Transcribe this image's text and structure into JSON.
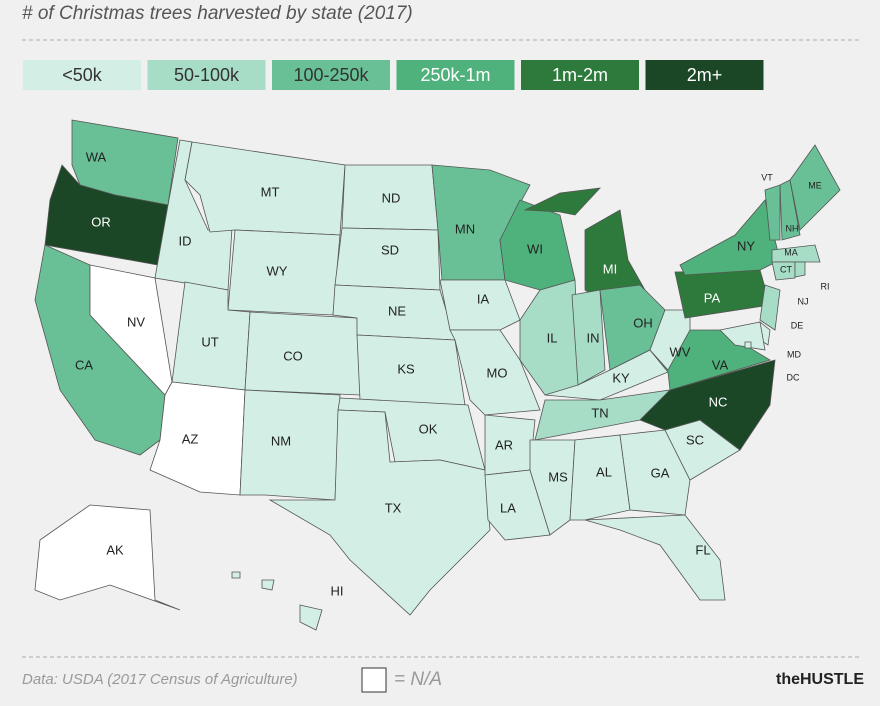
{
  "title": "# of Christmas trees harvested by state (2017)",
  "legend": [
    {
      "label": "<50k",
      "color": "#d3eee4"
    },
    {
      "label": "50-100k",
      "color": "#a7dcc6"
    },
    {
      "label": "100-250k",
      "color": "#69c096"
    },
    {
      "label": "250k-1m",
      "color": "#4fb17b"
    },
    {
      "label": "1m-2m",
      "color": "#2e7a3c"
    },
    {
      "label": "2m+",
      "color": "#1b4726"
    }
  ],
  "na_color": "#ffffff",
  "states": [
    {
      "label": "WA",
      "class": 2
    },
    {
      "label": "OR",
      "class": 5
    },
    {
      "label": "CA",
      "class": 2
    },
    {
      "label": "ID",
      "class": 0
    },
    {
      "label": "NV",
      "class": null
    },
    {
      "label": "MT",
      "class": 0
    },
    {
      "label": "WY",
      "class": 0
    },
    {
      "label": "UT",
      "class": 0
    },
    {
      "label": "AZ",
      "class": null
    },
    {
      "label": "CO",
      "class": 0
    },
    {
      "label": "NM",
      "class": 0
    },
    {
      "label": "ND",
      "class": 0
    },
    {
      "label": "SD",
      "class": 0
    },
    {
      "label": "NE",
      "class": 0
    },
    {
      "label": "KS",
      "class": 0
    },
    {
      "label": "OK",
      "class": 0
    },
    {
      "label": "TX",
      "class": 0
    },
    {
      "label": "MN",
      "class": 2
    },
    {
      "label": "IA",
      "class": 0
    },
    {
      "label": "MO",
      "class": 0
    },
    {
      "label": "AR",
      "class": 0
    },
    {
      "label": "LA",
      "class": 0
    },
    {
      "label": "WI",
      "class": 3
    },
    {
      "label": "IL",
      "class": 1
    },
    {
      "label": "MI",
      "class": 4
    },
    {
      "label": "IN",
      "class": 1
    },
    {
      "label": "OH",
      "class": 2
    },
    {
      "label": "KY",
      "class": 0
    },
    {
      "label": "TN",
      "class": 1
    },
    {
      "label": "MS",
      "class": 0
    },
    {
      "label": "AL",
      "class": 0
    },
    {
      "label": "GA",
      "class": 0
    },
    {
      "label": "FL",
      "class": 0
    },
    {
      "label": "SC",
      "class": 0
    },
    {
      "label": "NC",
      "class": 5
    },
    {
      "label": "VA",
      "class": 3
    },
    {
      "label": "WV",
      "class": 0
    },
    {
      "label": "PA",
      "class": 4
    },
    {
      "label": "NY",
      "class": 3
    },
    {
      "label": "VT",
      "class": 2
    },
    {
      "label": "NH",
      "class": 2
    },
    {
      "label": "ME",
      "class": 2
    },
    {
      "label": "MA",
      "class": 1
    },
    {
      "label": "CT",
      "class": 1
    },
    {
      "label": "RI",
      "class": 1
    },
    {
      "label": "NJ",
      "class": 1
    },
    {
      "label": "DE",
      "class": 0
    },
    {
      "label": "MD",
      "class": 0
    },
    {
      "label": "DC",
      "class": 0
    },
    {
      "label": "AK",
      "class": null
    },
    {
      "label": "HI",
      "class": 0
    }
  ],
  "footer": {
    "source": "Data: USDA (2017 Census of Agriculture)",
    "na_label": "= N/A",
    "brand": "theHUSTLE"
  }
}
